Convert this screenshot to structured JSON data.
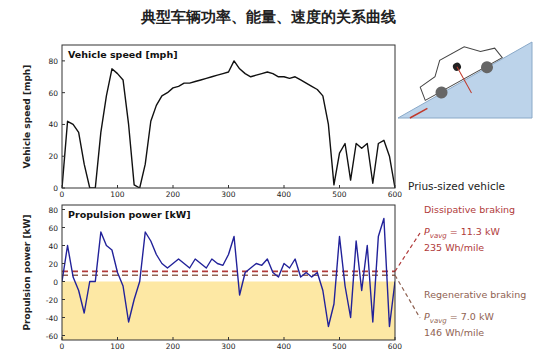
{
  "title": "典型车辆功率、能量、速度的关系曲线",
  "chart_data": [
    {
      "type": "line",
      "title": "Vehicle speed [mph]",
      "y_label": "Vehicle speed [mph]",
      "x": [
        0,
        10,
        20,
        30,
        40,
        50,
        60,
        70,
        80,
        90,
        100,
        110,
        120,
        130,
        140,
        150,
        160,
        170,
        180,
        190,
        200,
        210,
        220,
        230,
        240,
        250,
        260,
        270,
        280,
        290,
        300,
        310,
        320,
        330,
        340,
        350,
        360,
        370,
        380,
        390,
        400,
        410,
        420,
        430,
        440,
        450,
        460,
        470,
        480,
        490,
        500,
        510,
        520,
        530,
        540,
        550,
        560,
        570,
        580,
        590,
        600
      ],
      "series": [
        {
          "name": "Vehicle speed [mph]",
          "color": "#111111",
          "values": [
            0,
            42,
            40,
            35,
            15,
            0,
            0,
            35,
            58,
            75,
            72,
            68,
            40,
            2,
            0,
            15,
            42,
            52,
            58,
            60,
            63,
            64,
            66,
            66,
            67,
            68,
            69,
            70,
            71,
            72,
            73,
            80,
            75,
            72,
            70,
            71,
            72,
            73,
            72,
            70,
            70,
            69,
            70,
            68,
            66,
            64,
            62,
            58,
            40,
            2,
            22,
            28,
            5,
            28,
            25,
            28,
            3,
            28,
            30,
            20,
            0
          ]
        }
      ],
      "xlim": [
        0,
        600
      ],
      "xticks": [
        0,
        100,
        200,
        300,
        400,
        500,
        600
      ],
      "ylim": [
        0,
        90
      ],
      "yticks": [
        0,
        20,
        40,
        60,
        80
      ],
      "grid": false
    },
    {
      "type": "line",
      "title": "Propulsion power [kW]",
      "y_label": "Propulsion power [kW]",
      "x": [
        0,
        10,
        20,
        30,
        40,
        50,
        60,
        70,
        80,
        90,
        100,
        110,
        120,
        130,
        140,
        150,
        160,
        170,
        180,
        190,
        200,
        210,
        220,
        230,
        240,
        250,
        260,
        270,
        280,
        290,
        300,
        310,
        320,
        330,
        340,
        350,
        360,
        370,
        380,
        390,
        400,
        410,
        420,
        430,
        440,
        450,
        460,
        470,
        480,
        490,
        500,
        510,
        520,
        530,
        540,
        550,
        560,
        570,
        580,
        590,
        600
      ],
      "series": [
        {
          "name": "Propulsion power [kW]",
          "color": "#22229a",
          "values": [
            0,
            40,
            5,
            -10,
            -35,
            0,
            0,
            55,
            40,
            35,
            10,
            -5,
            -45,
            -20,
            0,
            55,
            45,
            30,
            20,
            15,
            20,
            25,
            20,
            15,
            25,
            20,
            15,
            25,
            20,
            18,
            30,
            50,
            -15,
            10,
            15,
            20,
            18,
            25,
            10,
            5,
            20,
            15,
            25,
            5,
            10,
            5,
            10,
            -10,
            -50,
            -25,
            50,
            -5,
            -40,
            45,
            -10,
            40,
            -45,
            50,
            70,
            -50,
            0
          ]
        }
      ],
      "reference_lines": [
        {
          "name": "Dissipative braking",
          "value": 11.3,
          "color": "#b03a3a",
          "line_style": "dashed"
        },
        {
          "name": "Regenerative braking",
          "value": 7.0,
          "color": "#8f6252",
          "line_style": "dashed"
        }
      ],
      "xlim": [
        0,
        600
      ],
      "xticks": [
        0,
        100,
        200,
        300,
        400,
        500,
        600
      ],
      "ylim": [
        -65,
        85
      ],
      "yticks": [
        -60,
        -40,
        -20,
        0,
        20,
        40,
        60,
        80
      ],
      "grid": false
    }
  ],
  "side_panel": {
    "heading": "Prius-sized vehicle",
    "items": [
      {
        "label": "Dissipative braking",
        "symbol": "P",
        "subscript": "vavg",
        "power": " = 11.3 kW",
        "energy": "235 Wh/mile",
        "color": "#b03a3a"
      },
      {
        "label": "Regenerative braking",
        "symbol": "P",
        "subscript": "vavg",
        "power": " = 7.0 kW",
        "energy": "146 Wh/mile",
        "color": "#8f6252"
      }
    ]
  }
}
